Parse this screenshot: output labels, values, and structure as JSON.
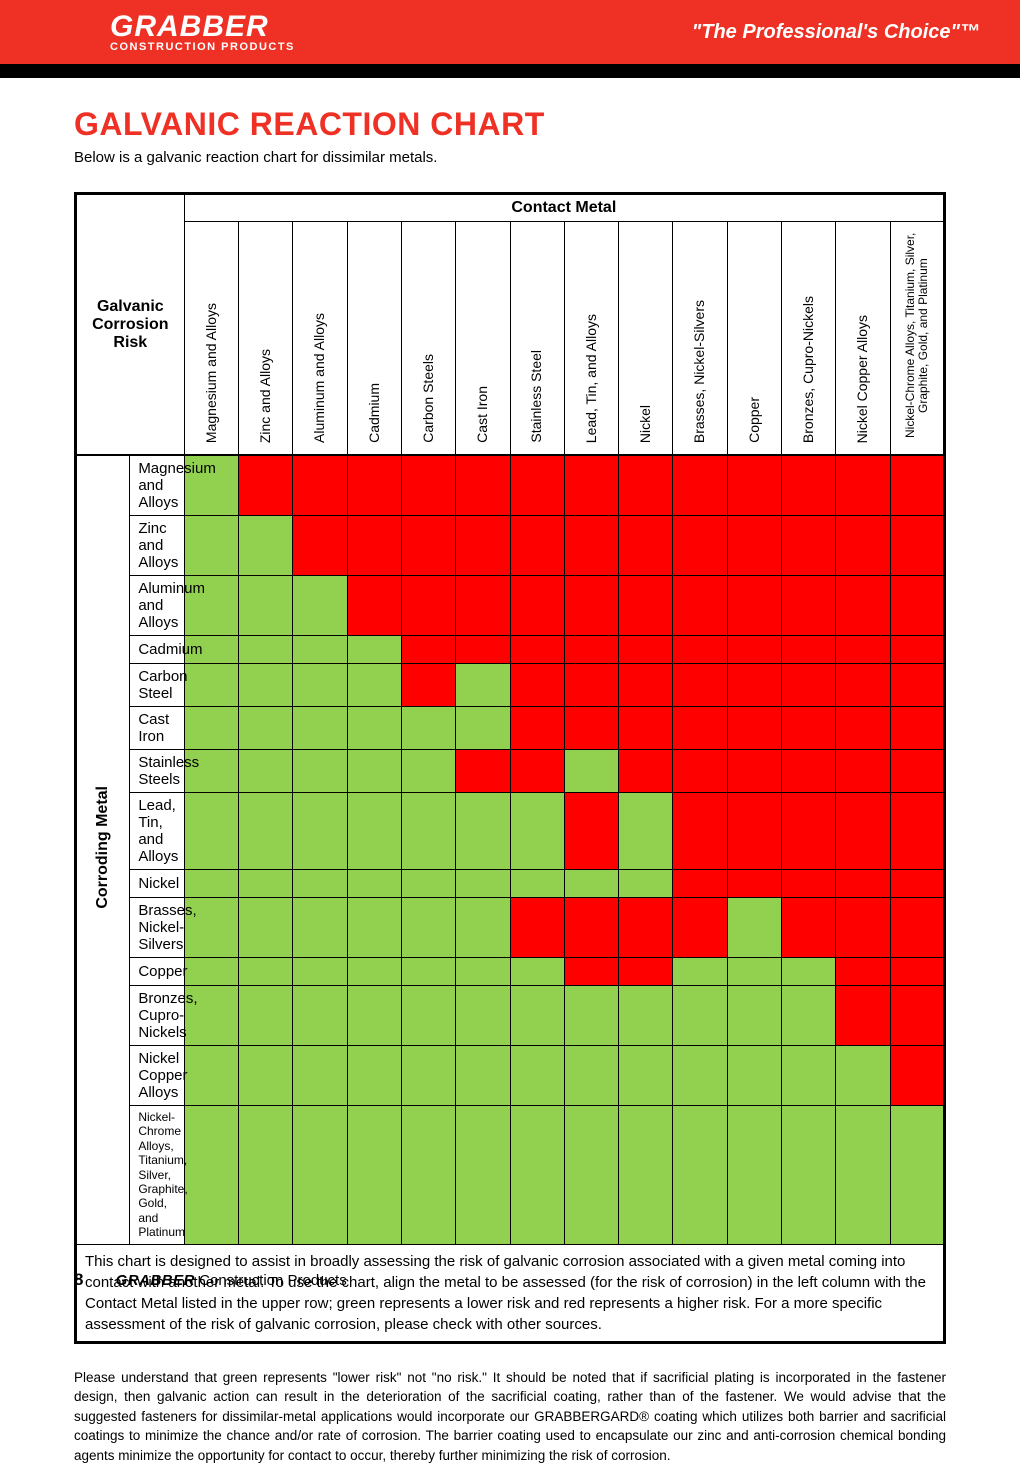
{
  "header": {
    "logo_main": "GRABBER",
    "logo_sub": "CONSTRUCTION PRODUCTS",
    "tagline": "\"The Professional's Choice\"™"
  },
  "page": {
    "title": "GALVANIC REACTION CHART",
    "subtitle": "Below is a galvanic reaction chart for dissimilar metals.",
    "page_number": "8",
    "footer_brand": "GRABBER",
    "footer_rest": " Construction Products"
  },
  "chart": {
    "risk_label": "Galvanic Corrosion Risk",
    "contact_label": "Contact Metal",
    "corroding_label": "Corroding Metal",
    "colors": {
      "low": "#92d050",
      "high": "#ff0000"
    },
    "columns": [
      "Magnesium and Alloys",
      "Zinc and Alloys",
      "Aluminum and Alloys",
      "Cadmium",
      "Carbon Steels",
      "Cast Iron",
      "Stainless Steel",
      "Lead, Tin, and Alloys",
      "Nickel",
      "Brasses, Nickel-Silvers",
      "Copper",
      "Bronzes, Cupro-Nickels",
      "Nickel Copper Alloys",
      "Nickel-Chrome Alloys, Titanium, Silver, Graphite, Gold, and Platinum"
    ],
    "rows": [
      {
        "label": "Magnesium and Alloys",
        "cells": [
          0,
          1,
          1,
          1,
          1,
          1,
          1,
          1,
          1,
          1,
          1,
          1,
          1,
          1
        ]
      },
      {
        "label": "Zinc and Alloys",
        "cells": [
          0,
          0,
          1,
          1,
          1,
          1,
          1,
          1,
          1,
          1,
          1,
          1,
          1,
          1
        ]
      },
      {
        "label": "Aluminum and Alloys",
        "cells": [
          0,
          0,
          0,
          1,
          1,
          1,
          1,
          1,
          1,
          1,
          1,
          1,
          1,
          1
        ]
      },
      {
        "label": "Cadmium",
        "cells": [
          0,
          0,
          0,
          0,
          1,
          1,
          1,
          1,
          1,
          1,
          1,
          1,
          1,
          1
        ]
      },
      {
        "label": "Carbon Steel",
        "cells": [
          0,
          0,
          0,
          0,
          1,
          0,
          1,
          1,
          1,
          1,
          1,
          1,
          1,
          1
        ]
      },
      {
        "label": "Cast Iron",
        "cells": [
          0,
          0,
          0,
          0,
          0,
          0,
          1,
          1,
          1,
          1,
          1,
          1,
          1,
          1
        ]
      },
      {
        "label": "Stainless Steels",
        "cells": [
          0,
          0,
          0,
          0,
          0,
          1,
          1,
          0,
          1,
          1,
          1,
          1,
          1,
          1
        ]
      },
      {
        "label": "Lead, Tin, and Alloys",
        "cells": [
          0,
          0,
          0,
          0,
          0,
          0,
          0,
          1,
          0,
          1,
          1,
          1,
          1,
          1
        ]
      },
      {
        "label": "Nickel",
        "cells": [
          0,
          0,
          0,
          0,
          0,
          0,
          0,
          0,
          0,
          1,
          1,
          1,
          1,
          1
        ]
      },
      {
        "label": "Brasses, Nickel-Silvers",
        "cells": [
          0,
          0,
          0,
          0,
          0,
          0,
          1,
          1,
          1,
          1,
          0,
          1,
          1,
          1
        ]
      },
      {
        "label": "Copper",
        "cells": [
          0,
          0,
          0,
          0,
          0,
          0,
          0,
          1,
          1,
          0,
          0,
          0,
          1,
          1
        ]
      },
      {
        "label": "Bronzes, Cupro-Nickels",
        "cells": [
          0,
          0,
          0,
          0,
          0,
          0,
          0,
          0,
          0,
          0,
          0,
          0,
          1,
          1
        ]
      },
      {
        "label": "Nickel Copper Alloys",
        "cells": [
          0,
          0,
          0,
          0,
          0,
          0,
          0,
          0,
          0,
          0,
          0,
          0,
          0,
          1
        ]
      },
      {
        "label": "Nickel-Chrome Alloys, Titanium, Silver, Graphite, Gold, and Platinum",
        "small": true,
        "cells": [
          0,
          0,
          0,
          0,
          0,
          0,
          0,
          0,
          0,
          0,
          0,
          0,
          0,
          0
        ]
      }
    ],
    "explain": "This chart is designed to assist in broadly assessing the risk of galvanic corrosion associated with a given metal coming into contact with another metal. To use the chart, align the metal to be assessed (for the risk of corrosion) in the left column with the Contact Metal listed in the upper row; green represents a lower risk and red represents a higher risk. For a more specific assessment of the risk of galvanic corrosion, please check with other sources."
  },
  "footnote": "Please understand that green represents \"lower risk\" not \"no risk.\" It should be noted that if sacrificial plating is incorporated in the fastener design, then galvanic action can result in the deterioration of the sacrificial coating, rather than of the fastener. We would advise that the suggested fasteners for dissimilar-metal applications would incorporate our GRABBERGARD® coating which utilizes both barrier and sacrificial coatings to minimize the chance and/or rate of corrosion. The barrier coating used to encapsulate our zinc and anti-corrosion chemical bonding agents minimize the opportunity for contact to occur, thereby further minimizing the risk of corrosion."
}
